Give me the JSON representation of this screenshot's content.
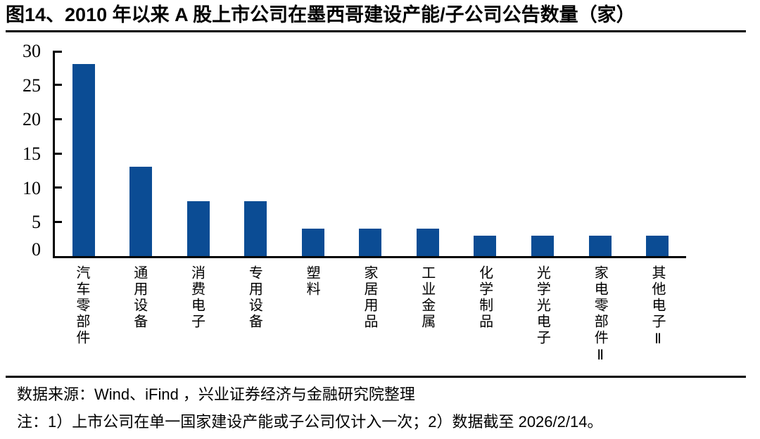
{
  "header": {
    "title": "图14、2010 年以来 A 股上市公司在墨西哥建设产能/子公司公告数量（家）"
  },
  "chart_data": {
    "type": "bar",
    "title": "2010 年以来 A 股上市公司在墨西哥建设产能/子公司公告数量（家）",
    "categories": [
      "汽车零部件",
      "通用设备",
      "消费电子",
      "专用设备",
      "塑料",
      "家居用品",
      "工业金属",
      "化学制品",
      "光学光电子",
      "家电零部件Ⅱ",
      "其他电子Ⅱ"
    ],
    "values": [
      28,
      13,
      8,
      8,
      4,
      4,
      4,
      3,
      3,
      3,
      3
    ],
    "xlabel": "",
    "ylabel": "",
    "ylim": [
      0,
      30
    ],
    "yticks": [
      0,
      5,
      10,
      15,
      20,
      25,
      30
    ],
    "grid": false,
    "legend": "none",
    "bar_color": "#0B4C94",
    "axis_color": "#000000"
  },
  "footer": {
    "source_line": "数据来源：Wind、iFind ，兴业证券经济与金融研究院整理",
    "note_line": "注：1）上市公司在单一国家建设产能或子公司仅计入一次；2）数据截至 2026/2/14。"
  }
}
